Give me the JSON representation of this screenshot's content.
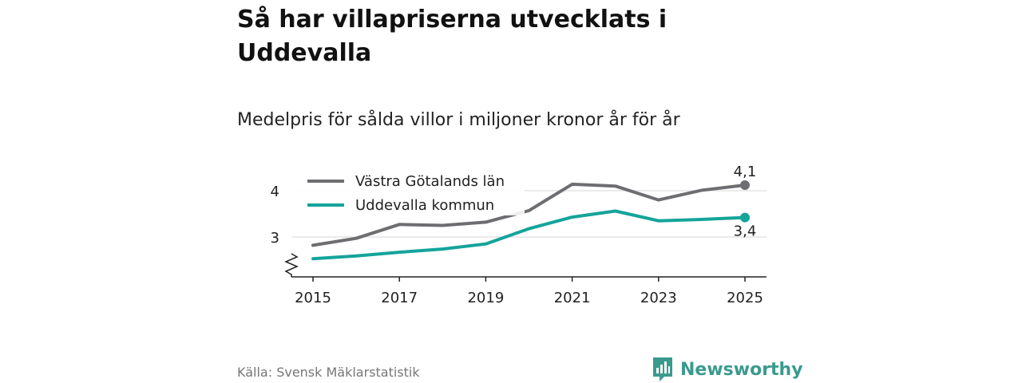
{
  "header": {
    "title": "Så har villapriserna utvecklats i Uddevalla",
    "subtitle": "Medelpris för sålda villor i miljoner kronor år för år"
  },
  "footer": {
    "source": "Källa: Svensk Mäklarstatistik",
    "brand": "Newsworthy",
    "brand_icon": "bar-chart-icon"
  },
  "colors": {
    "region": "#6e6e72",
    "municipality": "#14a49a",
    "grid": "#e3e3e3",
    "axis": "#222222",
    "brand": "#3a9a8e"
  },
  "chart_data": {
    "type": "line",
    "x": [
      2015,
      2016,
      2017,
      2018,
      2019,
      2020,
      2021,
      2022,
      2023,
      2024,
      2025
    ],
    "x_ticks": [
      "2015",
      "2017",
      "2019",
      "2021",
      "2023",
      "2025"
    ],
    "y_ticks": [
      "3",
      "4"
    ],
    "ylim": [
      2.2,
      4.35
    ],
    "axis_break": true,
    "legend_position": "top-left",
    "series": [
      {
        "name": "Västra Götalands län",
        "color": "#6e6e72",
        "values": [
          2.82,
          2.97,
          3.27,
          3.25,
          3.32,
          3.57,
          4.14,
          4.1,
          3.8,
          4.01,
          4.12
        ],
        "end_label": "4,1"
      },
      {
        "name": "Uddevalla kommun",
        "color": "#14a49a",
        "values": [
          2.53,
          2.59,
          2.67,
          2.74,
          2.85,
          3.18,
          3.43,
          3.56,
          3.35,
          3.38,
          3.42
        ],
        "end_label": "3,4"
      }
    ]
  }
}
